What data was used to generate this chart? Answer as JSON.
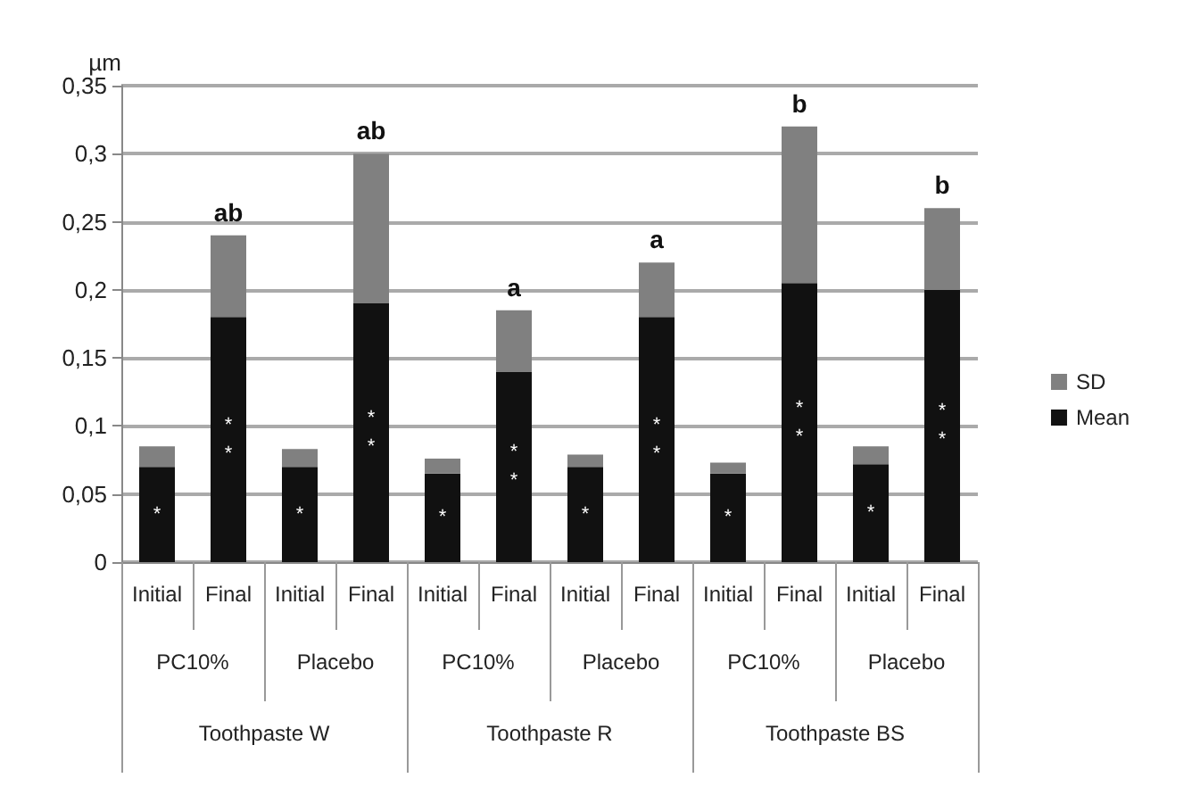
{
  "chart_data": {
    "type": "bar",
    "stacked": true,
    "ylabel": "µm",
    "categories": [
      "Initial",
      "Final",
      "Initial",
      "Final",
      "Initial",
      "Final",
      "Initial",
      "Final",
      "Initial",
      "Final",
      "Initial",
      "Final"
    ],
    "series": [
      {
        "name": "Mean",
        "color": "#111111",
        "values": [
          0.07,
          0.18,
          0.07,
          0.19,
          0.065,
          0.14,
          0.07,
          0.18,
          0.065,
          0.205,
          0.072,
          0.2
        ],
        "value_labels": [
          "*",
          "*\n*",
          "*",
          "*\n*",
          "*",
          "*\n*",
          "*",
          "*\n*",
          "*",
          "*\n*",
          "*",
          "*\n*"
        ]
      },
      {
        "name": "SD",
        "color": "#808080",
        "values": [
          0.015,
          0.06,
          0.013,
          0.11,
          0.011,
          0.045,
          0.009,
          0.04,
          0.008,
          0.115,
          0.013,
          0.06
        ],
        "value_labels": [
          null,
          "ab",
          null,
          "ab",
          null,
          "a",
          null,
          "a",
          null,
          "b",
          null,
          "b"
        ]
      }
    ],
    "ylim": [
      0,
      0.35
    ],
    "yticks": [
      {
        "value": 0,
        "label": "0"
      },
      {
        "value": 0.05,
        "label": "0,05"
      },
      {
        "value": 0.1,
        "label": "0,1"
      },
      {
        "value": 0.15,
        "label": "0,15"
      },
      {
        "value": 0.2,
        "label": "0,2"
      },
      {
        "value": 0.25,
        "label": "0,25"
      },
      {
        "value": 0.3,
        "label": "0,3"
      },
      {
        "value": 0.35,
        "label": "0,35"
      }
    ],
    "grid": "y",
    "legend": "right",
    "annotations": [
      "PC10%",
      "Placebo",
      "PC10%",
      "Placebo",
      "PC10%",
      "Placebo",
      "Toothpaste W",
      "Toothpaste R",
      "Toothpaste BS"
    ]
  }
}
